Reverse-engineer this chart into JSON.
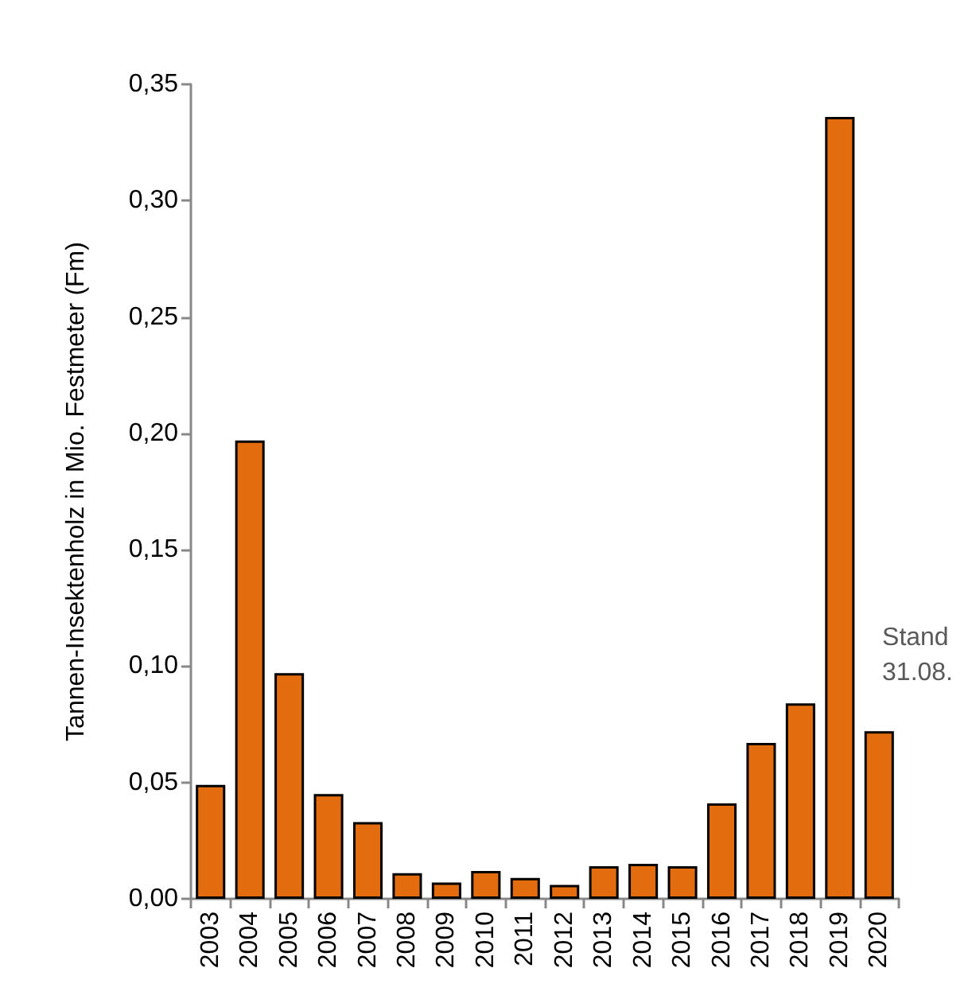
{
  "chart_data": {
    "type": "bar",
    "ylabel": "Tannen-Insektenholz in Mio. Festmeter (Fm)",
    "categories": [
      "2003",
      "2004",
      "2005",
      "2006",
      "2007",
      "2008",
      "2009",
      "2010",
      "2011",
      "2012",
      "2013",
      "2014",
      "2015",
      "2016",
      "2017",
      "2018",
      "2019",
      "2020"
    ],
    "values": [
      0.049,
      0.197,
      0.097,
      0.045,
      0.033,
      0.011,
      0.007,
      0.012,
      0.009,
      0.006,
      0.014,
      0.015,
      0.014,
      0.041,
      0.067,
      0.084,
      0.336,
      0.072
    ],
    "color": "#e36c0e",
    "ylim": [
      0,
      0.35
    ],
    "yticks": [
      {
        "value": 0,
        "label": "0,00"
      },
      {
        "value": 0.05,
        "label": "0,05"
      },
      {
        "value": 0.1,
        "label": "0,10"
      },
      {
        "value": 0.15,
        "label": "0,15"
      },
      {
        "value": 0.2,
        "label": "0,20"
      },
      {
        "value": 0.25,
        "label": "0,25"
      },
      {
        "value": 0.3,
        "label": "0,30"
      },
      {
        "value": 0.35,
        "label": "0,35"
      }
    ],
    "grid": false,
    "annotations": [
      "Stand\n31.08."
    ]
  }
}
